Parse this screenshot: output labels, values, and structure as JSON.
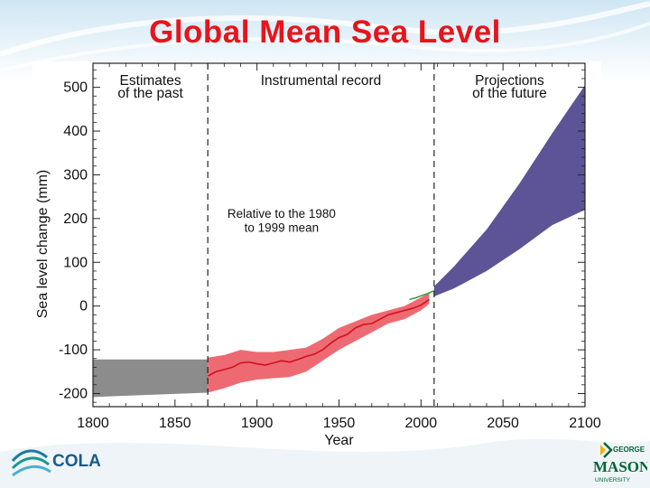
{
  "slide": {
    "title": "Global Mean Sea Level"
  },
  "logos": {
    "left": "COLA",
    "right_top": "GEORGE",
    "right_main": "MASON",
    "right_bottom": "UNIVERSITY"
  },
  "colors": {
    "title": "#e8141c",
    "past_band": "#8c8c8c",
    "record_band": "#ee6a72",
    "record_line": "#d2101e",
    "satellite_line": "#4a9a3a",
    "projection_band": "#5c5496"
  },
  "chart_data": {
    "type": "area",
    "xlabel": "Year",
    "ylabel": "Sea level change (mm)",
    "xlim": [
      1800,
      2100
    ],
    "ylim": [
      -230,
      555
    ],
    "x_ticks": [
      1800,
      1850,
      1900,
      1950,
      2000,
      2050,
      2100
    ],
    "y_ticks": [
      -200,
      -100,
      0,
      100,
      200,
      300,
      400,
      500
    ],
    "period_dividers": [
      1870,
      2008
    ],
    "periods": [
      {
        "label_line1": "Estimates",
        "label_line2": "of the past",
        "start": 1800,
        "end": 1870
      },
      {
        "label_line1": "Instrumental record",
        "label_line2": "",
        "start": 1870,
        "end": 2008
      },
      {
        "label_line1": "Projections",
        "label_line2": "of the future",
        "start": 2008,
        "end": 2100
      }
    ],
    "annotation_line1": "Relative to the 1980",
    "annotation_line2": "to 1999 mean",
    "series": [
      {
        "kind": "band",
        "x": [
          1800,
          1870
        ],
        "lower": [
          -208,
          -198
        ],
        "upper": [
          -122,
          -122
        ]
      },
      {
        "kind": "band",
        "x": [
          1870,
          1880,
          1890,
          1900,
          1910,
          1920,
          1930,
          1940,
          1950,
          1960,
          1970,
          1980,
          1990,
          2000,
          2005
        ],
        "lower": [
          -198,
          -188,
          -175,
          -168,
          -165,
          -162,
          -150,
          -125,
          -100,
          -80,
          -60,
          -40,
          -30,
          -10,
          5
        ],
        "upper": [
          -118,
          -112,
          -100,
          -105,
          -105,
          -100,
          -95,
          -75,
          -50,
          -35,
          -20,
          -10,
          0,
          20,
          30
        ]
      },
      {
        "kind": "line",
        "x": [
          1870,
          1875,
          1880,
          1885,
          1890,
          1895,
          1900,
          1905,
          1910,
          1915,
          1920,
          1925,
          1930,
          1935,
          1940,
          1945,
          1950,
          1955,
          1960,
          1965,
          1970,
          1975,
          1980,
          1985,
          1990,
          1995,
          2000,
          2005
        ],
        "values": [
          -160,
          -150,
          -145,
          -140,
          -130,
          -128,
          -132,
          -135,
          -130,
          -125,
          -128,
          -122,
          -115,
          -110,
          -100,
          -85,
          -72,
          -65,
          -50,
          -42,
          -40,
          -30,
          -20,
          -15,
          -10,
          -5,
          2,
          15
        ]
      },
      {
        "kind": "line",
        "x": [
          1993,
          1996,
          1999,
          2002,
          2005,
          2008
        ],
        "values": [
          15,
          18,
          22,
          26,
          30,
          35
        ]
      },
      {
        "kind": "band",
        "x": [
          2008,
          2020,
          2040,
          2060,
          2080,
          2100
        ],
        "lower": [
          22,
          40,
          80,
          130,
          185,
          220
        ],
        "upper": [
          45,
          90,
          175,
          280,
          395,
          505
        ]
      }
    ]
  }
}
